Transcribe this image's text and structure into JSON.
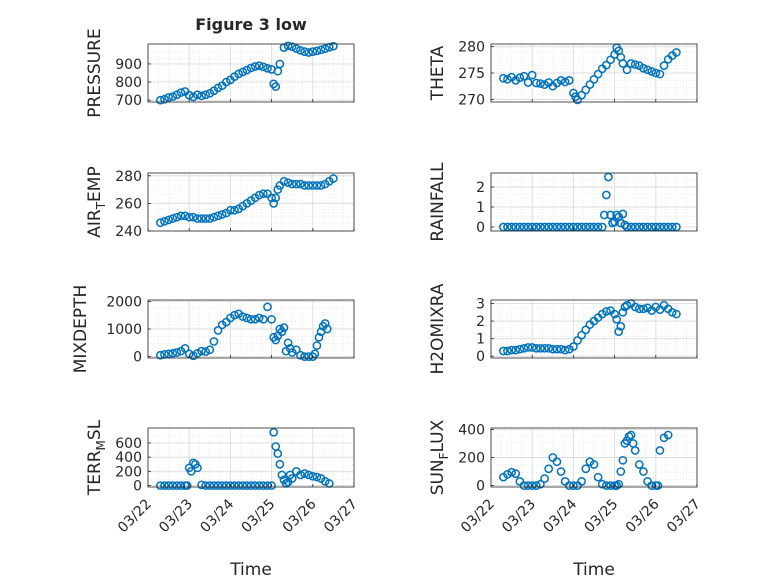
{
  "figure": {
    "title": "Figure 3 low",
    "xlabel": "Time",
    "x_tick_labels": [
      "03/22",
      "03/23",
      "03/24",
      "03/25",
      "03/26",
      "03/27"
    ],
    "marker_color": "#0072BD",
    "grid_color": "#dcdcdc"
  },
  "chart_data": [
    {
      "type": "scatter",
      "id": "pressure",
      "ylabel": "PRESSURE",
      "ylim": [
        690,
        1010
      ],
      "yticks": [
        700,
        800,
        900
      ],
      "xlim": [
        0,
        5
      ],
      "grid": true,
      "x": [
        0.3,
        0.4,
        0.5,
        0.6,
        0.7,
        0.8,
        0.9,
        1.0,
        1.1,
        1.2,
        1.3,
        1.4,
        1.5,
        1.6,
        1.7,
        1.8,
        1.9,
        2.0,
        2.1,
        2.2,
        2.3,
        2.4,
        2.5,
        2.6,
        2.7,
        2.8,
        2.9,
        3.0,
        3.05,
        3.1,
        3.15,
        3.2,
        3.3,
        3.4,
        3.5,
        3.6,
        3.7,
        3.8,
        3.9,
        4.0,
        4.1,
        4.2,
        4.3,
        4.4,
        4.5
      ],
      "y": [
        700,
        705,
        715,
        720,
        730,
        742,
        748,
        728,
        718,
        730,
        724,
        730,
        738,
        752,
        768,
        780,
        800,
        812,
        830,
        845,
        856,
        866,
        878,
        886,
        890,
        884,
        876,
        870,
        790,
        775,
        860,
        900,
        990,
        1000,
        995,
        985,
        975,
        968,
        963,
        968,
        972,
        978,
        984,
        992,
        998
      ]
    },
    {
      "type": "scatter",
      "id": "theta",
      "ylabel": "THETA",
      "ylim": [
        269.5,
        280.5
      ],
      "yticks": [
        270,
        275,
        280
      ],
      "xlim": [
        0,
        5
      ],
      "grid": true,
      "x": [
        0.3,
        0.4,
        0.5,
        0.6,
        0.7,
        0.8,
        0.9,
        1.0,
        1.1,
        1.2,
        1.3,
        1.4,
        1.5,
        1.6,
        1.7,
        1.8,
        1.9,
        2.0,
        2.05,
        2.1,
        2.2,
        2.3,
        2.4,
        2.5,
        2.6,
        2.7,
        2.8,
        2.9,
        3.0,
        3.05,
        3.1,
        3.15,
        3.2,
        3.3,
        3.4,
        3.5,
        3.6,
        3.7,
        3.8,
        3.9,
        4.0,
        4.1,
        4.2,
        4.3,
        4.4,
        4.5
      ],
      "y": [
        274,
        273.8,
        274.2,
        273.6,
        274.1,
        274.4,
        273.2,
        274.6,
        273.1,
        273,
        272.8,
        273.2,
        272.5,
        273.1,
        273.6,
        273.3,
        273.6,
        271.2,
        270.5,
        269.9,
        270.8,
        271.8,
        272.8,
        273.8,
        274.8,
        275.8,
        276.5,
        277.5,
        278.5,
        279.8,
        279.2,
        278,
        276.8,
        275.6,
        276.8,
        276.6,
        276.4,
        275.9,
        275.6,
        275.3,
        275,
        274.8,
        276.4,
        277.6,
        278.3,
        278.9
      ]
    },
    {
      "type": "scatter",
      "id": "air_temp",
      "ylabel": "AIR_TEMP",
      "ylim": [
        240,
        282
      ],
      "yticks": [
        240,
        260,
        280
      ],
      "xlim": [
        0,
        5
      ],
      "grid": true,
      "x": [
        0.3,
        0.4,
        0.5,
        0.6,
        0.7,
        0.8,
        0.9,
        1.0,
        1.1,
        1.2,
        1.3,
        1.4,
        1.5,
        1.6,
        1.7,
        1.8,
        1.9,
        2.0,
        2.1,
        2.2,
        2.3,
        2.4,
        2.5,
        2.6,
        2.7,
        2.8,
        2.9,
        3.0,
        3.05,
        3.1,
        3.15,
        3.2,
        3.3,
        3.4,
        3.5,
        3.6,
        3.7,
        3.8,
        3.9,
        4.0,
        4.1,
        4.2,
        4.3,
        4.4,
        4.5
      ],
      "y": [
        246,
        247,
        248,
        249,
        250,
        251,
        251,
        250,
        250,
        249,
        249,
        249,
        249,
        250,
        251,
        252,
        253,
        255,
        255,
        256,
        258,
        260,
        262,
        264,
        266,
        267,
        267,
        264,
        260,
        264,
        270,
        273,
        276,
        275,
        274,
        274,
        274,
        273,
        273,
        273,
        273,
        273,
        274,
        276,
        278
      ]
    },
    {
      "type": "scatter",
      "id": "rainfall",
      "ylabel": "RAINFALL",
      "ylim": [
        -0.2,
        2.7
      ],
      "yticks": [
        0,
        1,
        2
      ],
      "xlim": [
        0,
        5
      ],
      "grid": true,
      "x": [
        0.3,
        0.4,
        0.5,
        0.6,
        0.7,
        0.8,
        0.9,
        1.0,
        1.1,
        1.2,
        1.3,
        1.4,
        1.5,
        1.6,
        1.7,
        1.8,
        1.9,
        2.0,
        2.1,
        2.2,
        2.3,
        2.4,
        2.5,
        2.6,
        2.7,
        2.75,
        2.8,
        2.85,
        2.9,
        2.95,
        3.0,
        3.05,
        3.1,
        3.15,
        3.2,
        3.25,
        3.3,
        3.4,
        3.5,
        3.6,
        3.7,
        3.8,
        3.9,
        4.0,
        4.1,
        4.2,
        4.3,
        4.4,
        4.5
      ],
      "y": [
        0,
        0,
        0,
        0,
        0,
        0,
        0,
        0,
        0,
        0,
        0,
        0,
        0,
        0,
        0,
        0,
        0,
        0,
        0,
        0,
        0,
        0,
        0,
        0,
        0,
        0.6,
        1.6,
        2.5,
        0.6,
        0.2,
        0.25,
        0.6,
        0.5,
        0.2,
        0.65,
        0.1,
        0,
        0,
        0,
        0,
        0,
        0,
        0,
        0,
        0,
        0,
        0,
        0,
        0
      ]
    },
    {
      "type": "scatter",
      "id": "mixdepth",
      "ylabel": "MIXDEPTH",
      "ylim": [
        -50,
        2050
      ],
      "yticks": [
        0,
        1000,
        2000
      ],
      "xlim": [
        0,
        5
      ],
      "grid": true,
      "x": [
        0.3,
        0.4,
        0.5,
        0.6,
        0.7,
        0.8,
        0.9,
        1.0,
        1.1,
        1.2,
        1.3,
        1.4,
        1.5,
        1.6,
        1.7,
        1.8,
        1.9,
        2.0,
        2.1,
        2.2,
        2.3,
        2.4,
        2.5,
        2.6,
        2.7,
        2.8,
        2.9,
        3.0,
        3.05,
        3.1,
        3.15,
        3.2,
        3.25,
        3.3,
        3.35,
        3.4,
        3.45,
        3.5,
        3.6,
        3.7,
        3.8,
        3.9,
        4.0,
        4.05,
        4.1,
        4.15,
        4.2,
        4.25,
        4.3,
        4.35
      ],
      "y": [
        50,
        80,
        100,
        120,
        150,
        200,
        300,
        100,
        30,
        120,
        200,
        180,
        250,
        550,
        950,
        1150,
        1250,
        1400,
        1500,
        1550,
        1450,
        1400,
        1350,
        1350,
        1400,
        1350,
        1800,
        1350,
        700,
        600,
        750,
        1000,
        900,
        1050,
        200,
        500,
        300,
        150,
        250,
        50,
        0,
        0,
        0,
        100,
        400,
        700,
        900,
        1100,
        1200,
        1000
      ]
    },
    {
      "type": "scatter",
      "id": "h2omixra",
      "ylabel": "H2OMIXRA",
      "ylim": [
        -0.1,
        3.2
      ],
      "yticks": [
        0,
        1,
        2,
        3
      ],
      "xlim": [
        0,
        5
      ],
      "grid": true,
      "x": [
        0.3,
        0.4,
        0.5,
        0.6,
        0.7,
        0.8,
        0.9,
        1.0,
        1.1,
        1.2,
        1.3,
        1.4,
        1.5,
        1.6,
        1.7,
        1.8,
        1.9,
        2.0,
        2.1,
        2.2,
        2.3,
        2.4,
        2.5,
        2.6,
        2.7,
        2.8,
        2.9,
        3.0,
        3.05,
        3.1,
        3.15,
        3.2,
        3.25,
        3.3,
        3.4,
        3.5,
        3.6,
        3.7,
        3.8,
        3.9,
        4.0,
        4.1,
        4.2,
        4.3,
        4.4,
        4.5
      ],
      "y": [
        0.3,
        0.3,
        0.35,
        0.35,
        0.4,
        0.45,
        0.5,
        0.5,
        0.45,
        0.45,
        0.45,
        0.45,
        0.4,
        0.4,
        0.4,
        0.35,
        0.4,
        0.55,
        0.9,
        1.2,
        1.5,
        1.8,
        2.0,
        2.2,
        2.4,
        2.55,
        2.6,
        2.4,
        2.1,
        1.4,
        1.7,
        2.5,
        2.8,
        2.9,
        3.0,
        2.8,
        2.7,
        2.7,
        2.75,
        2.6,
        2.8,
        2.65,
        2.9,
        2.7,
        2.5,
        2.4
      ]
    },
    {
      "type": "scatter",
      "id": "terr_msl",
      "ylabel": "TERR_MSL",
      "ylim": [
        -20,
        810
      ],
      "yticks": [
        0,
        200,
        400,
        600
      ],
      "xlim": [
        0,
        5
      ],
      "grid": true,
      "x": [
        0.3,
        0.4,
        0.5,
        0.6,
        0.7,
        0.8,
        0.9,
        0.95,
        1.0,
        1.05,
        1.1,
        1.15,
        1.2,
        1.3,
        1.4,
        1.5,
        1.6,
        1.7,
        1.8,
        1.9,
        2.0,
        2.1,
        2.2,
        2.3,
        2.4,
        2.5,
        2.6,
        2.7,
        2.8,
        2.9,
        3.0,
        3.05,
        3.1,
        3.15,
        3.2,
        3.25,
        3.3,
        3.35,
        3.4,
        3.45,
        3.5,
        3.6,
        3.7,
        3.8,
        3.9,
        4.0,
        4.1,
        4.2,
        4.3,
        4.4
      ],
      "y": [
        0,
        0,
        0,
        0,
        0,
        0,
        0,
        0,
        250,
        200,
        320,
        300,
        250,
        10,
        0,
        0,
        0,
        0,
        0,
        0,
        0,
        0,
        0,
        0,
        0,
        0,
        0,
        0,
        0,
        0,
        0,
        750,
        550,
        450,
        300,
        150,
        80,
        30,
        50,
        150,
        100,
        200,
        150,
        170,
        150,
        130,
        120,
        100,
        60,
        30
      ]
    },
    {
      "type": "scatter",
      "id": "sun_flux",
      "ylabel": "SUN_FLUX",
      "ylim": [
        -10,
        410
      ],
      "yticks": [
        0,
        200,
        400
      ],
      "xlim": [
        0,
        5
      ],
      "grid": true,
      "x": [
        0.3,
        0.4,
        0.5,
        0.6,
        0.7,
        0.8,
        0.9,
        1.0,
        1.1,
        1.2,
        1.3,
        1.4,
        1.5,
        1.6,
        1.7,
        1.8,
        1.9,
        2.0,
        2.1,
        2.2,
        2.3,
        2.4,
        2.5,
        2.6,
        2.7,
        2.8,
        2.9,
        3.0,
        3.05,
        3.1,
        3.15,
        3.2,
        3.25,
        3.3,
        3.35,
        3.4,
        3.45,
        3.5,
        3.6,
        3.7,
        3.8,
        3.9,
        4.0,
        4.05,
        4.1,
        4.2,
        4.3
      ],
      "y": [
        60,
        80,
        95,
        85,
        30,
        0,
        0,
        0,
        0,
        10,
        50,
        120,
        200,
        170,
        100,
        30,
        0,
        0,
        0,
        30,
        120,
        170,
        150,
        60,
        10,
        0,
        0,
        0,
        0,
        10,
        100,
        180,
        300,
        320,
        350,
        360,
        300,
        250,
        150,
        100,
        30,
        0,
        0,
        0,
        250,
        340,
        360
      ]
    }
  ]
}
